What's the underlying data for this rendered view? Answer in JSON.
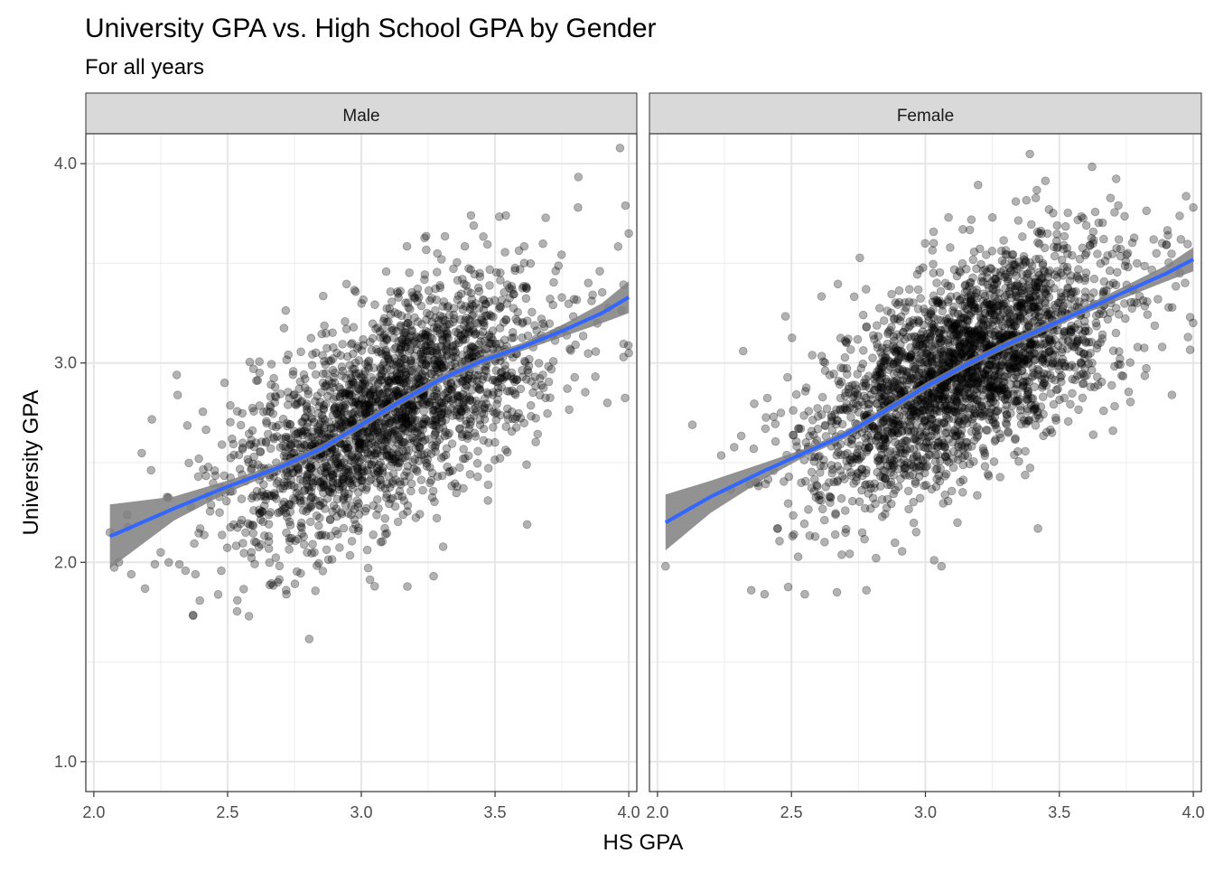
{
  "chart_data": {
    "type": "scatter",
    "title": "University GPA vs. High School GPA by Gender",
    "subtitle": "For all years",
    "xlabel": "HS GPA",
    "ylabel": "University GPA",
    "xlim": [
      1.97,
      4.03
    ],
    "ylim": [
      0.85,
      4.15
    ],
    "x_ticks": [
      2.0,
      2.5,
      3.0,
      3.5,
      4.0
    ],
    "x_tick_labels": [
      "2.0",
      "2.5",
      "3.0",
      "3.5",
      "4.0"
    ],
    "y_ticks": [
      1.0,
      2.0,
      3.0,
      4.0
    ],
    "y_tick_labels": [
      "1.0",
      "2.0",
      "3.0",
      "4.0"
    ],
    "grid": true,
    "point_color": "#000000",
    "point_alpha": 0.3,
    "smooth_color": "#3366FF",
    "ribbon_color": "#7f7f7f",
    "strip_fill": "#d9d9d9",
    "facets": [
      {
        "label": "Male",
        "smooth": {
          "x": [
            2.06,
            2.3,
            2.5,
            2.7,
            2.85,
            3.0,
            3.15,
            3.3,
            3.45,
            3.6,
            3.75,
            3.9,
            4.0
          ],
          "y": [
            2.13,
            2.27,
            2.38,
            2.48,
            2.57,
            2.69,
            2.81,
            2.92,
            3.01,
            3.08,
            3.16,
            3.25,
            3.33
          ],
          "lower": [
            1.97,
            2.21,
            2.35,
            2.46,
            2.55,
            2.67,
            2.79,
            2.9,
            2.99,
            3.06,
            3.13,
            3.2,
            3.25
          ],
          "upper": [
            2.29,
            2.33,
            2.41,
            2.5,
            2.59,
            2.71,
            2.83,
            2.94,
            3.03,
            3.1,
            3.19,
            3.3,
            3.41
          ]
        },
        "cloud": {
          "n": 2200,
          "x_mean": 3.1,
          "x_sd": 0.3,
          "x_min": 2.06,
          "x_max": 4.0,
          "y_sd": 0.26
        },
        "points": [
          {
            "x": 2.06,
            "y": 2.15
          },
          {
            "x": 2.14,
            "y": 1.94
          },
          {
            "x": 2.25,
            "y": 2.05
          },
          {
            "x": 2.28,
            "y": 2.0
          },
          {
            "x": 2.31,
            "y": 2.94
          },
          {
            "x": 2.38,
            "y": 1.94
          },
          {
            "x": 2.58,
            "y": 1.73
          },
          {
            "x": 2.72,
            "y": 1.84
          },
          {
            "x": 3.41,
            "y": 3.74
          },
          {
            "x": 3.81,
            "y": 3.78
          },
          {
            "x": 4.0,
            "y": 3.65
          },
          {
            "x": 3.92,
            "y": 2.8
          },
          {
            "x": 3.62,
            "y": 2.19
          },
          {
            "x": 3.27,
            "y": 1.93
          },
          {
            "x": 3.05,
            "y": 1.88
          },
          {
            "x": 4.0,
            "y": 3.05
          },
          {
            "x": 3.3,
            "y": 3.52
          }
        ]
      },
      {
        "label": "Female",
        "smooth": {
          "x": [
            2.03,
            2.2,
            2.4,
            2.55,
            2.7,
            2.85,
            3.0,
            3.15,
            3.3,
            3.45,
            3.6,
            3.75,
            3.9,
            4.0
          ],
          "y": [
            2.2,
            2.33,
            2.46,
            2.55,
            2.64,
            2.76,
            2.88,
            2.99,
            3.09,
            3.18,
            3.27,
            3.36,
            3.45,
            3.52
          ],
          "lower": [
            2.06,
            2.25,
            2.42,
            2.53,
            2.62,
            2.74,
            2.86,
            2.97,
            3.07,
            3.16,
            3.25,
            3.33,
            3.41,
            3.46
          ],
          "upper": [
            2.34,
            2.41,
            2.5,
            2.57,
            2.66,
            2.78,
            2.9,
            3.01,
            3.11,
            3.2,
            3.29,
            3.39,
            3.49,
            3.58
          ]
        },
        "cloud": {
          "n": 2600,
          "x_mean": 3.15,
          "x_sd": 0.3,
          "x_min": 2.03,
          "x_max": 4.0,
          "y_sd": 0.25
        },
        "points": [
          {
            "x": 2.03,
            "y": 1.98
          },
          {
            "x": 2.13,
            "y": 2.69
          },
          {
            "x": 2.32,
            "y": 3.06
          },
          {
            "x": 2.35,
            "y": 1.86
          },
          {
            "x": 2.4,
            "y": 1.84
          },
          {
            "x": 2.55,
            "y": 1.84
          },
          {
            "x": 2.67,
            "y": 1.85
          },
          {
            "x": 2.78,
            "y": 1.86
          },
          {
            "x": 3.72,
            "y": 3.79
          },
          {
            "x": 4.0,
            "y": 3.78
          },
          {
            "x": 3.98,
            "y": 3.13
          },
          {
            "x": 3.92,
            "y": 2.84
          },
          {
            "x": 3.7,
            "y": 2.66
          },
          {
            "x": 3.42,
            "y": 2.17
          },
          {
            "x": 3.06,
            "y": 1.98
          },
          {
            "x": 3.25,
            "y": 3.73
          },
          {
            "x": 3.95,
            "y": 3.45
          }
        ]
      }
    ]
  }
}
